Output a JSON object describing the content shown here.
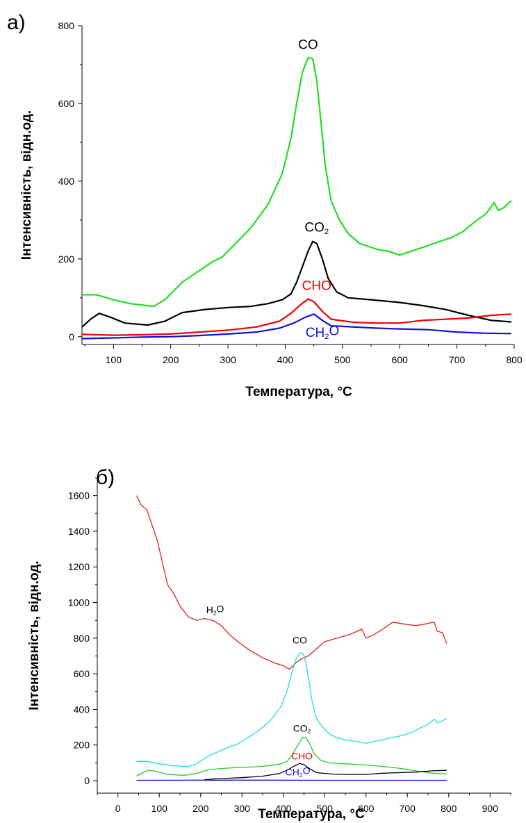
{
  "chart_data": [
    {
      "type": "line",
      "panel_label": "а)",
      "xlabel": "Температура, °C",
      "ylabel": "Інтенсивність, відн.од.",
      "xlim": [
        45,
        800
      ],
      "ylim": [
        -20,
        800
      ],
      "xticks": [
        100,
        200,
        300,
        400,
        500,
        600,
        700,
        800
      ],
      "yticks": [
        0,
        200,
        400,
        600,
        800
      ],
      "grid": false,
      "series": [
        {
          "name": "CO",
          "label_main": "CO",
          "label_sub": "",
          "color": "#22dd22",
          "label_color": "#000000",
          "label_x": 440,
          "label_y": 740,
          "points": [
            [
              45,
              108
            ],
            [
              70,
              108
            ],
            [
              100,
              95
            ],
            [
              130,
              85
            ],
            [
              170,
              78
            ],
            [
              190,
              95
            ],
            [
              220,
              140
            ],
            [
              250,
              170
            ],
            [
              275,
              195
            ],
            [
              290,
              205
            ],
            [
              310,
              235
            ],
            [
              340,
              280
            ],
            [
              370,
              340
            ],
            [
              395,
              420
            ],
            [
              410,
              510
            ],
            [
              420,
              600
            ],
            [
              430,
              680
            ],
            [
              440,
              718
            ],
            [
              448,
              715
            ],
            [
              455,
              660
            ],
            [
              462,
              560
            ],
            [
              470,
              440
            ],
            [
              480,
              350
            ],
            [
              495,
              300
            ],
            [
              510,
              265
            ],
            [
              530,
              240
            ],
            [
              560,
              225
            ],
            [
              580,
              220
            ],
            [
              600,
              210
            ],
            [
              630,
              225
            ],
            [
              660,
              240
            ],
            [
              690,
              255
            ],
            [
              710,
              270
            ],
            [
              735,
              300
            ],
            [
              750,
              315
            ],
            [
              765,
              345
            ],
            [
              772,
              325
            ],
            [
              780,
              330
            ],
            [
              795,
              350
            ]
          ]
        },
        {
          "name": "CO2",
          "label_main": "CO",
          "label_sub": "2",
          "color": "#000000",
          "label_color": "#000000",
          "label_x": 455,
          "label_y": 270,
          "points": [
            [
              45,
              25
            ],
            [
              60,
              45
            ],
            [
              75,
              60
            ],
            [
              95,
              50
            ],
            [
              120,
              35
            ],
            [
              160,
              30
            ],
            [
              190,
              40
            ],
            [
              220,
              62
            ],
            [
              260,
              70
            ],
            [
              300,
              75
            ],
            [
              340,
              78
            ],
            [
              370,
              85
            ],
            [
              395,
              95
            ],
            [
              410,
              110
            ],
            [
              420,
              140
            ],
            [
              430,
              180
            ],
            [
              440,
              220
            ],
            [
              448,
              245
            ],
            [
              455,
              240
            ],
            [
              465,
              200
            ],
            [
              475,
              150
            ],
            [
              490,
              115
            ],
            [
              510,
              100
            ],
            [
              550,
              95
            ],
            [
              600,
              88
            ],
            [
              640,
              80
            ],
            [
              680,
              70
            ],
            [
              720,
              55
            ],
            [
              760,
              42
            ],
            [
              795,
              38
            ]
          ]
        },
        {
          "name": "CHO",
          "label_main": "CHO",
          "label_sub": "",
          "color": "#ee0000",
          "label_color": "#ee0000",
          "label_x": 455,
          "label_y": 120,
          "points": [
            [
              45,
              6
            ],
            [
              100,
              4
            ],
            [
              150,
              5
            ],
            [
              200,
              7
            ],
            [
              250,
              12
            ],
            [
              300,
              17
            ],
            [
              350,
              25
            ],
            [
              390,
              40
            ],
            [
              410,
              60
            ],
            [
              425,
              80
            ],
            [
              440,
              97
            ],
            [
              450,
              90
            ],
            [
              465,
              65
            ],
            [
              480,
              45
            ],
            [
              520,
              37
            ],
            [
              560,
              35
            ],
            [
              600,
              35
            ],
            [
              640,
              42
            ],
            [
              680,
              45
            ],
            [
              720,
              48
            ],
            [
              760,
              55
            ],
            [
              795,
              58
            ]
          ]
        },
        {
          "name": "CH2O",
          "label_main": "CH",
          "label_sub": "2",
          "label_tail": "O",
          "color": "#1111dd",
          "label_color": "#1111dd",
          "label_x": 465,
          "label_y": 0,
          "points": [
            [
              45,
              -5
            ],
            [
              100,
              -3
            ],
            [
              150,
              -1
            ],
            [
              200,
              0
            ],
            [
              250,
              3
            ],
            [
              300,
              7
            ],
            [
              350,
              12
            ],
            [
              390,
              22
            ],
            [
              415,
              35
            ],
            [
              435,
              50
            ],
            [
              450,
              58
            ],
            [
              465,
              42
            ],
            [
              480,
              28
            ],
            [
              520,
              25
            ],
            [
              560,
              22
            ],
            [
              600,
              20
            ],
            [
              650,
              18
            ],
            [
              700,
              12
            ],
            [
              750,
              9
            ],
            [
              795,
              8
            ]
          ]
        }
      ]
    },
    {
      "type": "line",
      "panel_label": "б)",
      "xlabel": "Температура, °C",
      "ylabel": "Інтенсивність, відн.од.",
      "xlim": [
        -50,
        950
      ],
      "ylim": [
        -70,
        1700
      ],
      "xticks": [
        0,
        100,
        200,
        300,
        400,
        500,
        600,
        700,
        800,
        900
      ],
      "yticks": [
        0,
        200,
        400,
        600,
        800,
        1000,
        1200,
        1400,
        1600
      ],
      "grid": false,
      "series": [
        {
          "name": "H2O",
          "label_main": "H",
          "label_sub": "2",
          "label_tail": "O",
          "color": "#e02020",
          "label_color": "#000000",
          "label_x": 235,
          "label_y": 940,
          "points": [
            [
              45,
              1600
            ],
            [
              55,
              1550
            ],
            [
              70,
              1520
            ],
            [
              80,
              1450
            ],
            [
              95,
              1350
            ],
            [
              105,
              1250
            ],
            [
              120,
              1100
            ],
            [
              135,
              1050
            ],
            [
              150,
              980
            ],
            [
              170,
              920
            ],
            [
              190,
              900
            ],
            [
              210,
              910
            ],
            [
              230,
              900
            ],
            [
              250,
              870
            ],
            [
              270,
              820
            ],
            [
              290,
              780
            ],
            [
              320,
              730
            ],
            [
              350,
              690
            ],
            [
              380,
              660
            ],
            [
              400,
              645
            ],
            [
              415,
              625
            ],
            [
              425,
              650
            ],
            [
              440,
              680
            ],
            [
              460,
              700
            ],
            [
              480,
              740
            ],
            [
              500,
              780
            ],
            [
              530,
              800
            ],
            [
              560,
              820
            ],
            [
              590,
              850
            ],
            [
              600,
              800
            ],
            [
              620,
              820
            ],
            [
              640,
              850
            ],
            [
              665,
              890
            ],
            [
              690,
              880
            ],
            [
              720,
              870
            ],
            [
              745,
              880
            ],
            [
              765,
              890
            ],
            [
              772,
              840
            ],
            [
              785,
              830
            ],
            [
              795,
              770
            ]
          ]
        },
        {
          "name": "CO",
          "label_main": "CO",
          "label_sub": "",
          "color": "#22dddd",
          "label_color": "#000000",
          "label_x": 440,
          "label_y": 770,
          "points": [
            [
              45,
              108
            ],
            [
              70,
              108
            ],
            [
              100,
              95
            ],
            [
              130,
              85
            ],
            [
              170,
              78
            ],
            [
              190,
              95
            ],
            [
              220,
              140
            ],
            [
              250,
              170
            ],
            [
              275,
              195
            ],
            [
              290,
              205
            ],
            [
              310,
              235
            ],
            [
              340,
              280
            ],
            [
              370,
              340
            ],
            [
              395,
              420
            ],
            [
              410,
              510
            ],
            [
              420,
              600
            ],
            [
              430,
              680
            ],
            [
              440,
              718
            ],
            [
              448,
              715
            ],
            [
              455,
              660
            ],
            [
              462,
              560
            ],
            [
              470,
              440
            ],
            [
              480,
              350
            ],
            [
              495,
              300
            ],
            [
              510,
              265
            ],
            [
              530,
              240
            ],
            [
              560,
              225
            ],
            [
              580,
              220
            ],
            [
              600,
              210
            ],
            [
              630,
              225
            ],
            [
              660,
              240
            ],
            [
              690,
              255
            ],
            [
              710,
              270
            ],
            [
              735,
              300
            ],
            [
              750,
              315
            ],
            [
              765,
              345
            ],
            [
              772,
              325
            ],
            [
              780,
              330
            ],
            [
              795,
              350
            ]
          ]
        },
        {
          "name": "CO2",
          "label_main": "CO",
          "label_sub": "2",
          "color": "#22cc22",
          "label_color": "#000000",
          "label_x": 445,
          "label_y": 275,
          "points": [
            [
              45,
              25
            ],
            [
              60,
              45
            ],
            [
              75,
              60
            ],
            [
              95,
              50
            ],
            [
              120,
              35
            ],
            [
              160,
              30
            ],
            [
              190,
              40
            ],
            [
              220,
              62
            ],
            [
              260,
              70
            ],
            [
              300,
              75
            ],
            [
              340,
              78
            ],
            [
              370,
              85
            ],
            [
              395,
              95
            ],
            [
              410,
              110
            ],
            [
              420,
              140
            ],
            [
              430,
              180
            ],
            [
              440,
              220
            ],
            [
              448,
              245
            ],
            [
              455,
              240
            ],
            [
              465,
              200
            ],
            [
              475,
              150
            ],
            [
              490,
              115
            ],
            [
              510,
              100
            ],
            [
              550,
              95
            ],
            [
              600,
              88
            ],
            [
              640,
              80
            ],
            [
              680,
              70
            ],
            [
              720,
              55
            ],
            [
              760,
              42
            ],
            [
              795,
              38
            ]
          ]
        },
        {
          "name": "CHO",
          "label_main": "CHO",
          "label_sub": "",
          "color": "#000000",
          "label_color": "#ee0000",
          "label_x": 445,
          "label_y": 120,
          "points": [
            [
              210,
              6
            ],
            [
              250,
              12
            ],
            [
              300,
              17
            ],
            [
              350,
              25
            ],
            [
              390,
              40
            ],
            [
              410,
              60
            ],
            [
              425,
              80
            ],
            [
              440,
              97
            ],
            [
              450,
              90
            ],
            [
              465,
              65
            ],
            [
              480,
              45
            ],
            [
              520,
              37
            ],
            [
              560,
              35
            ],
            [
              600,
              35
            ],
            [
              640,
              42
            ],
            [
              680,
              45
            ],
            [
              720,
              48
            ],
            [
              760,
              55
            ],
            [
              795,
              58
            ]
          ]
        },
        {
          "name": "CH2O",
          "label_main": "CH",
          "label_sub": "2",
          "label_tail": "O",
          "color": "#1111dd",
          "label_color": "#1111dd",
          "label_x": 435,
          "label_y": 30,
          "points": [
            [
              45,
              2
            ],
            [
              200,
              3
            ],
            [
              350,
              3
            ],
            [
              500,
              2
            ],
            [
              650,
              2
            ],
            [
              795,
              2
            ]
          ]
        }
      ]
    }
  ]
}
